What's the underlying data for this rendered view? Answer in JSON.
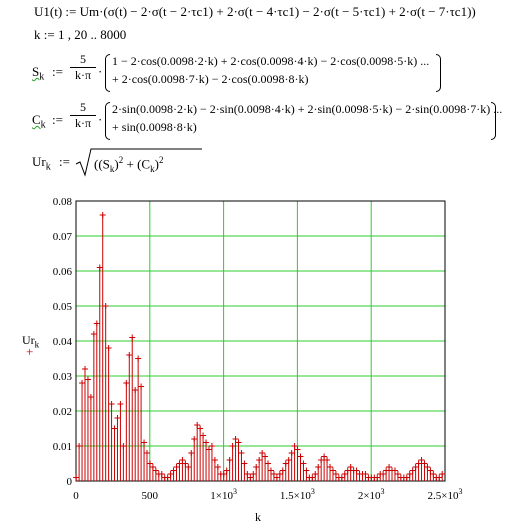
{
  "equations": {
    "u1_lhs": "U1(t) := Um·(σ(t) − 2·σ(t − 2·τc1) + 2·σ(t − 4·τc1) − 2·σ(t − 5·τc1) + 2·σ(t − 7·τc1))",
    "k_range": "k := 1 , 20 .. 8000",
    "sk_lhs": "S",
    "sk_sub": "k",
    "sk_assign": ":=",
    "frac_num": "5",
    "frac_den": "k·π",
    "sk_line1": "1 − 2·cos(0.0098·2·k) + 2·cos(0.0098·4·k) − 2·cos(0.0098·5·k) ...",
    "sk_line2": "+ 2·cos(0.0098·7·k) − 2·cos(0.0098·8·k)",
    "ck_lhs": "C",
    "ck_sub": "k",
    "ck_line1": "2·sin(0.0098·2·k) − 2·sin(0.0098·4·k) + 2·sin(0.0098·5·k) − 2·sin(0.0098·7·k) ...",
    "ck_line2": "+ sin(0.0098·8·k)",
    "ur_lhs": "Ur",
    "ur_sub": "k",
    "ur_rhs": ":= √( (S",
    "ur_rhs_full_a": "(S",
    "ur_rhs_full_b": ")",
    "ur_rhs_plus": "+ (C",
    "sq": "2"
  },
  "chart_data": {
    "type": "scatter",
    "style": "stem with cross markers",
    "ylabel": "Ur",
    "ylabel_sub": "k",
    "xlabel": "k",
    "xlim": [
      0,
      2500
    ],
    "ylim": [
      0,
      0.08
    ],
    "grid": true,
    "grid_color": "#2ecc2e",
    "series_color": "#cc0000",
    "yticks": [
      "0",
      "0.01",
      "0.02",
      "0.03",
      "0.04",
      "0.05",
      "0.06",
      "0.07",
      "0.08"
    ],
    "xticks": [
      {
        "value": 0,
        "label": "0"
      },
      {
        "value": 500,
        "label": "500"
      },
      {
        "value": 1000,
        "label": "1×10",
        "exp": "3"
      },
      {
        "value": 1500,
        "label": "1.5×10",
        "exp": "3"
      },
      {
        "value": 2000,
        "label": "2×10",
        "exp": "3"
      },
      {
        "value": 2500,
        "label": "2.5×10",
        "exp": "3"
      }
    ],
    "x": [
      1,
      21,
      41,
      61,
      81,
      101,
      121,
      141,
      161,
      181,
      201,
      221,
      241,
      261,
      281,
      301,
      321,
      341,
      361,
      381,
      401,
      421,
      441,
      461,
      481,
      501,
      521,
      541,
      561,
      581,
      601,
      621,
      641,
      661,
      681,
      701,
      721,
      741,
      761,
      781,
      801,
      821,
      841,
      861,
      881,
      901,
      921,
      941,
      961,
      981,
      1001,
      1021,
      1041,
      1061,
      1081,
      1101,
      1121,
      1141,
      1161,
      1181,
      1201,
      1221,
      1241,
      1261,
      1281,
      1301,
      1321,
      1341,
      1361,
      1381,
      1401,
      1421,
      1441,
      1461,
      1481,
      1501,
      1521,
      1541,
      1561,
      1581,
      1601,
      1621,
      1641,
      1661,
      1681,
      1701,
      1721,
      1741,
      1761,
      1781,
      1801,
      1821,
      1841,
      1861,
      1881,
      1901,
      1921,
      1941,
      1961,
      1981,
      2001,
      2021,
      2041,
      2061,
      2081,
      2101,
      2121,
      2141,
      2161,
      2181,
      2201,
      2221,
      2241,
      2261,
      2281,
      2301,
      2321,
      2341,
      2361,
      2381,
      2401,
      2421,
      2441,
      2461,
      2481
    ],
    "y": [
      0.001,
      0.01,
      0.028,
      0.032,
      0.029,
      0.024,
      0.042,
      0.045,
      0.061,
      0.076,
      0.05,
      0.038,
      0.022,
      0.015,
      0.018,
      0.022,
      0.01,
      0.028,
      0.036,
      0.041,
      0.026,
      0.035,
      0.027,
      0.011,
      0.008,
      0.005,
      0.004,
      0.003,
      0.002,
      0.002,
      0.001,
      0.001,
      0.002,
      0.003,
      0.004,
      0.005,
      0.006,
      0.005,
      0.004,
      0.008,
      0.012,
      0.016,
      0.015,
      0.013,
      0.011,
      0.009,
      0.01,
      0.006,
      0.004,
      0.002,
      0.002,
      0.003,
      0.006,
      0.01,
      0.012,
      0.011,
      0.008,
      0.005,
      0.002,
      0.001,
      0.002,
      0.004,
      0.006,
      0.008,
      0.007,
      0.005,
      0.003,
      0.002,
      0.001,
      0.002,
      0.003,
      0.005,
      0.006,
      0.008,
      0.01,
      0.009,
      0.007,
      0.005,
      0.003,
      0.001,
      0.001,
      0.002,
      0.004,
      0.006,
      0.007,
      0.006,
      0.004,
      0.003,
      0.002,
      0.001,
      0.001,
      0.002,
      0.003,
      0.004,
      0.003,
      0.003,
      0.002,
      0.002,
      0.002,
      0.001,
      0.001,
      0.001,
      0.001,
      0.002,
      0.002,
      0.003,
      0.004,
      0.003,
      0.003,
      0.002,
      0.001,
      0.001,
      0.001,
      0.002,
      0.003,
      0.004,
      0.005,
      0.006,
      0.005,
      0.004,
      0.003,
      0.002,
      0.001,
      0.001,
      0.002
    ]
  }
}
